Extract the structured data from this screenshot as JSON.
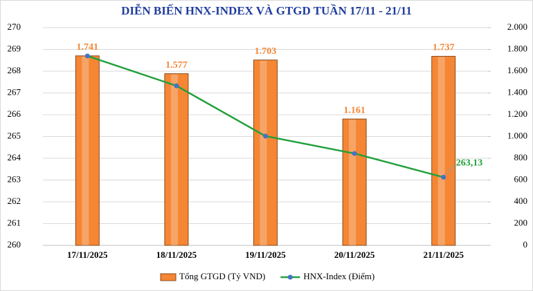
{
  "chart_data": {
    "type": "combo",
    "title": "DIỄN BIẾN HNX-INDEX VÀ GTGD TUẦN 17/11 - 21/11",
    "categories": [
      "17/11/2025",
      "18/11/2025",
      "19/11/2025",
      "20/11/2025",
      "21/11/2025"
    ],
    "series": [
      {
        "name": "Tổng GTGD (Tỷ VND)",
        "type": "bar",
        "axis": "y2",
        "color": "#f58634",
        "values": [
          1741,
          1577,
          1703,
          1161,
          1737
        ],
        "value_labels": [
          "1.741",
          "1.577",
          "1.703",
          "1.161",
          "1.737"
        ]
      },
      {
        "name": "HNX-Index (Điểm)",
        "type": "line",
        "color": "#22a03c",
        "marker_color": "#4472c4",
        "values": [
          268.7,
          267.33,
          265.02,
          264.22,
          263.13
        ],
        "value_labels": [
          null,
          null,
          null,
          null,
          "263,13"
        ]
      }
    ],
    "ylim": [
      260,
      270
    ],
    "yticks": [
      260,
      261,
      262,
      263,
      264,
      265,
      266,
      267,
      268,
      269,
      270
    ],
    "y2lim": [
      0,
      2000
    ],
    "y2ticks": [
      0,
      200,
      400,
      600,
      800,
      {
        "value": 1000,
        "label": "1.000"
      },
      {
        "value": 1200,
        "label": "1.200"
      },
      {
        "value": 1400,
        "label": "1.400"
      },
      {
        "value": 1600,
        "label": "1.600"
      },
      {
        "value": 1800,
        "label": "1.800"
      },
      {
        "value": 2000,
        "label": "2.000"
      }
    ],
    "grid": true,
    "legend": "bottom"
  }
}
